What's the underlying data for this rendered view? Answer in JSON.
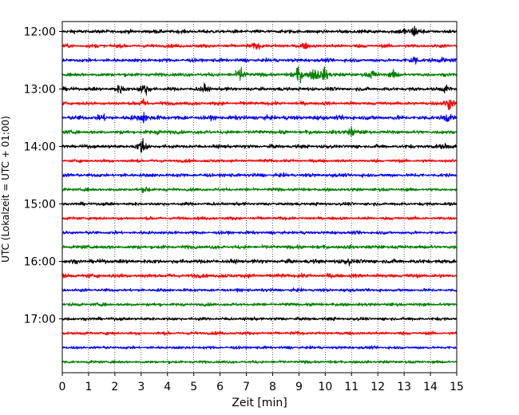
{
  "chart_data": {
    "type": "line",
    "title": "",
    "xlabel": "Zeit  [min]",
    "ylabel": "UTC (Lokalzeit = UTC + 01:00)",
    "xlim": [
      0,
      15
    ],
    "x_ticks": [
      0,
      1,
      2,
      3,
      4,
      5,
      6,
      7,
      8,
      9,
      10,
      11,
      12,
      13,
      14,
      15
    ],
    "y_tick_labels": [
      "12:00",
      "13:00",
      "14:00",
      "15:00",
      "16:00",
      "17:00"
    ],
    "grid": "vertical dotted",
    "colors": [
      "#000000",
      "#ff0000",
      "#0000ff",
      "#008000"
    ],
    "traces": [
      {
        "start": "12:00",
        "color": "#000000",
        "amplitude": 0.25,
        "events": [
          {
            "x": 13.4,
            "amp": 1.1
          },
          {
            "x": 13.0,
            "amp": 0.5
          }
        ]
      },
      {
        "start": "12:15",
        "color": "#ff0000",
        "amplitude": 0.25,
        "events": [
          {
            "x": 7.4,
            "amp": 0.5
          },
          {
            "x": 9.2,
            "amp": 0.5
          }
        ]
      },
      {
        "start": "12:30",
        "color": "#0000ff",
        "amplitude": 0.25,
        "events": [
          {
            "x": 13.4,
            "amp": 0.9
          },
          {
            "x": 14.5,
            "amp": 0.4
          }
        ]
      },
      {
        "start": "12:45",
        "color": "#008000",
        "amplitude": 0.25,
        "events": [
          {
            "x": 6.8,
            "amp": 1.3
          },
          {
            "x": 9.0,
            "amp": 1.7
          },
          {
            "x": 9.6,
            "amp": 1.4
          },
          {
            "x": 10.0,
            "amp": 1.2
          },
          {
            "x": 11.8,
            "amp": 0.7
          },
          {
            "x": 12.6,
            "amp": 0.6
          }
        ]
      },
      {
        "start": "13:00",
        "color": "#000000",
        "amplitude": 0.25,
        "events": [
          {
            "x": 2.2,
            "amp": 0.7
          },
          {
            "x": 3.1,
            "amp": 1.4
          },
          {
            "x": 5.4,
            "amp": 0.6
          },
          {
            "x": 14.6,
            "amp": 0.6
          }
        ]
      },
      {
        "start": "13:15",
        "color": "#ff0000",
        "amplitude": 0.25,
        "events": [
          {
            "x": 14.7,
            "amp": 1.3
          },
          {
            "x": 3.1,
            "amp": 0.6
          }
        ]
      },
      {
        "start": "13:30",
        "color": "#0000ff",
        "amplitude": 0.3,
        "events": [
          {
            "x": 1.5,
            "amp": 0.5
          },
          {
            "x": 3.1,
            "amp": 0.9
          },
          {
            "x": 14.6,
            "amp": 0.6
          }
        ]
      },
      {
        "start": "13:45",
        "color": "#008000",
        "amplitude": 0.25,
        "events": [
          {
            "x": 11.0,
            "amp": 0.9
          },
          {
            "x": 3.7,
            "amp": 0.4
          }
        ]
      },
      {
        "start": "14:00",
        "color": "#000000",
        "amplitude": 0.25,
        "events": [
          {
            "x": 3.05,
            "amp": 1.5
          },
          {
            "x": 14.6,
            "amp": 0.5
          }
        ]
      },
      {
        "start": "14:15",
        "color": "#ff0000",
        "amplitude": 0.22,
        "events": []
      },
      {
        "start": "14:30",
        "color": "#0000ff",
        "amplitude": 0.25,
        "events": []
      },
      {
        "start": "14:45",
        "color": "#008000",
        "amplitude": 0.22,
        "events": [
          {
            "x": 3.2,
            "amp": 0.5
          }
        ]
      },
      {
        "start": "15:00",
        "color": "#000000",
        "amplitude": 0.22,
        "events": []
      },
      {
        "start": "15:15",
        "color": "#ff0000",
        "amplitude": 0.22,
        "events": []
      },
      {
        "start": "15:30",
        "color": "#0000ff",
        "amplitude": 0.22,
        "events": []
      },
      {
        "start": "15:45",
        "color": "#008000",
        "amplitude": 0.25,
        "events": []
      },
      {
        "start": "16:00",
        "color": "#000000",
        "amplitude": 0.28,
        "events": [
          {
            "x": 10.9,
            "amp": 0.5
          }
        ]
      },
      {
        "start": "16:15",
        "color": "#ff0000",
        "amplitude": 0.28,
        "events": []
      },
      {
        "start": "16:30",
        "color": "#0000ff",
        "amplitude": 0.22,
        "events": []
      },
      {
        "start": "16:45",
        "color": "#008000",
        "amplitude": 0.22,
        "events": []
      },
      {
        "start": "17:00",
        "color": "#000000",
        "amplitude": 0.22,
        "events": []
      },
      {
        "start": "17:15",
        "color": "#ff0000",
        "amplitude": 0.22,
        "events": []
      },
      {
        "start": "17:30",
        "color": "#0000ff",
        "amplitude": 0.2,
        "events": []
      },
      {
        "start": "17:45",
        "color": "#008000",
        "amplitude": 0.2,
        "events": []
      }
    ]
  }
}
